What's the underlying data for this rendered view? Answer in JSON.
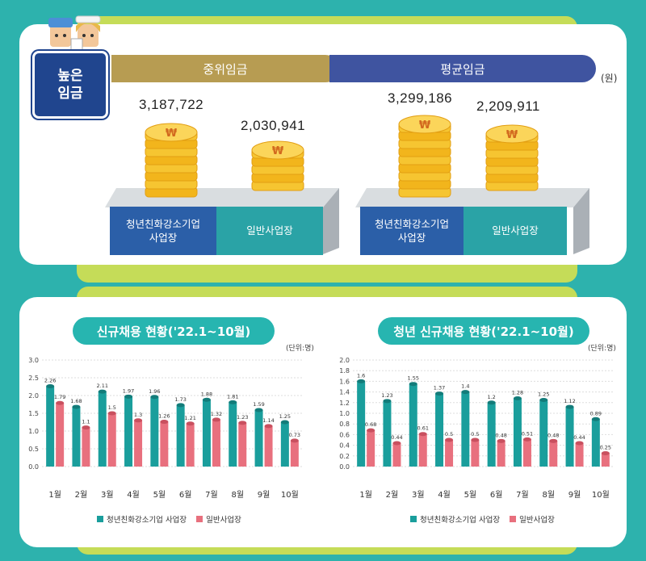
{
  "top": {
    "badge": "높은\n임금",
    "unit": "(원)",
    "median_header": "중위임금",
    "average_header": "평균임금",
    "median": {
      "youth_value": "3,187,722",
      "general_value": "2,030,941"
    },
    "average": {
      "youth_value": "3,299,186",
      "general_value": "2,209,911"
    },
    "youth_label": "청년친화강소기업\n사업장",
    "general_label": "일반사업장",
    "coin_symbol": "₩"
  },
  "colors": {
    "youth": "#1a9e9c",
    "general": "#e8707e",
    "navy": "#20458e",
    "gold": "#b79c52"
  },
  "chart_data": [
    {
      "type": "bar",
      "title": "신규채용 현황('22.1~10월)",
      "unit": "(단위:명)",
      "categories": [
        "1월",
        "2월",
        "3월",
        "4월",
        "5월",
        "6월",
        "7월",
        "8월",
        "9월",
        "10월"
      ],
      "ylim": [
        0,
        3.0
      ],
      "yticks": [
        "0.0",
        "0.5",
        "1.0",
        "1.5",
        "2.0",
        "2.5",
        "3.0"
      ],
      "grid": true,
      "legend_position": "bottom",
      "series": [
        {
          "name": "청년친화강소기업 사업장",
          "values": [
            2.26,
            1.68,
            2.11,
            1.97,
            1.96,
            1.73,
            1.88,
            1.81,
            1.59,
            1.25
          ],
          "labels": [
            "2.26",
            "1.68",
            "2.11",
            "1.97",
            "1.96",
            "1.73",
            "1.88",
            "1.81",
            "1.59",
            "1.25"
          ]
        },
        {
          "name": "일반사업장",
          "values": [
            1.79,
            1.1,
            1.5,
            1.3,
            1.26,
            1.21,
            1.32,
            1.23,
            1.14,
            0.73
          ],
          "labels": [
            "1.79",
            "1.1",
            "1.5",
            "1.3",
            "1.26",
            "1.21",
            "1.32",
            "1.23",
            "1.14",
            "0.73"
          ]
        }
      ]
    },
    {
      "type": "bar",
      "title": "청년 신규채용 현황('22.1~10월)",
      "unit": "(단위:명)",
      "categories": [
        "1월",
        "2월",
        "3월",
        "4월",
        "5월",
        "6월",
        "7월",
        "8월",
        "9월",
        "10월"
      ],
      "ylim": [
        0,
        2.0
      ],
      "yticks": [
        "0.0",
        "0.2",
        "0.4",
        "0.6",
        "0.8",
        "1.0",
        "1.2",
        "1.4",
        "1.6",
        "1.8",
        "2.0"
      ],
      "grid": true,
      "legend_position": "bottom",
      "series": [
        {
          "name": "청년친화강소기업 사업장",
          "values": [
            1.6,
            1.23,
            1.55,
            1.37,
            1.4,
            1.2,
            1.28,
            1.25,
            1.12,
            0.89
          ],
          "labels": [
            "1.6",
            "1.23",
            "1.55",
            "1.37",
            "1.4",
            "1.2",
            "1.28",
            "1.25",
            "1.12",
            "0.89"
          ]
        },
        {
          "name": "일반사업장",
          "values": [
            0.68,
            0.44,
            0.61,
            0.5,
            0.5,
            0.48,
            0.51,
            0.48,
            0.44,
            0.25
          ],
          "labels": [
            "0.68",
            "0.44",
            "0.61",
            "0.5",
            "0.5",
            "0.48",
            "0.51",
            "0.48",
            "0.44",
            "0.25"
          ]
        }
      ]
    }
  ]
}
